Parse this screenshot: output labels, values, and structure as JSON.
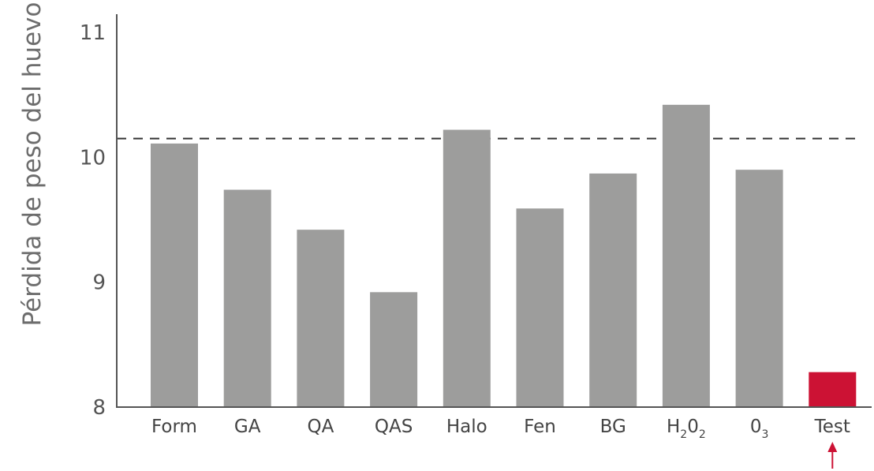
{
  "chart_data": {
    "type": "bar",
    "categories": [
      "Form",
      "GA",
      "QA",
      "QAS",
      "Halo",
      "Fen",
      "BG",
      "H₂0₂",
      "0₃",
      "Test"
    ],
    "category_labels": [
      {
        "text": "Form",
        "sub": []
      },
      {
        "text": "GA",
        "sub": []
      },
      {
        "text": "QA",
        "sub": []
      },
      {
        "text": "QAS",
        "sub": []
      },
      {
        "text": "Halo",
        "sub": []
      },
      {
        "text": "Fen",
        "sub": []
      },
      {
        "text": "BG",
        "sub": []
      },
      {
        "text": "H",
        "sub": [
          "2",
          "0",
          "2"
        ]
      },
      {
        "text": "0",
        "sub": [
          "3"
        ]
      },
      {
        "text": "Test",
        "sub": []
      }
    ],
    "values": [
      10.11,
      9.74,
      9.42,
      8.92,
      10.22,
      9.59,
      9.87,
      10.42,
      9.9,
      8.28
    ],
    "highlight_index": 9,
    "reference_line": 10.15,
    "ylabel": "Pérdida de peso del huevo",
    "ylim": [
      8,
      11
    ],
    "yticks": [
      8,
      9,
      10,
      11
    ],
    "grid": false,
    "colors": {
      "bar": "#9d9d9c",
      "highlight": "#cc1234",
      "reference_line": "#333333",
      "axis": "#555555"
    },
    "annotation": {
      "target": "Test",
      "icon": "arrow-up-icon"
    }
  }
}
